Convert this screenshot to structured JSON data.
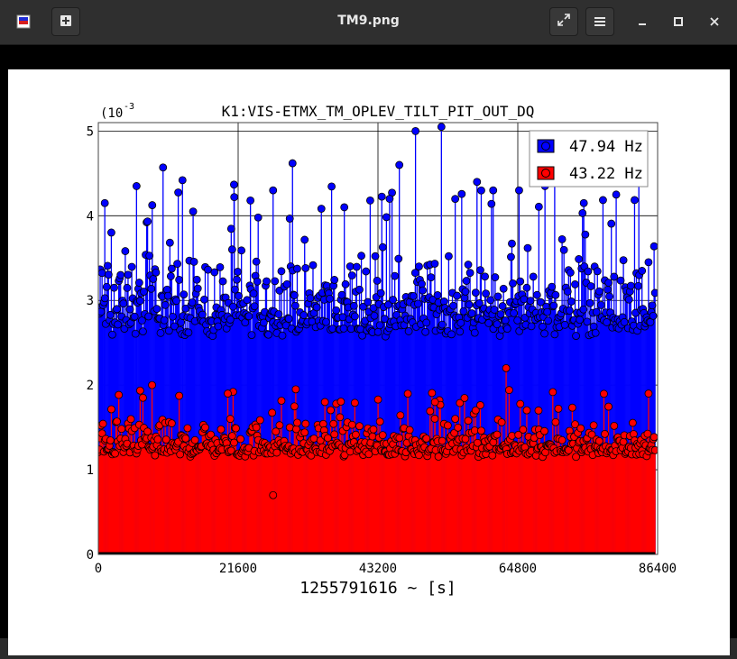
{
  "window": {
    "title": "TM9.png"
  },
  "icons": {
    "app": "app-image-viewer-icon",
    "new": "new-tab-icon",
    "fullscreen": "fullscreen-icon",
    "menu": "hamburger-menu-icon",
    "minimize": "minimize-icon",
    "maximize": "maximize-icon",
    "close": "close-icon"
  },
  "chart_data": {
    "type": "scatter",
    "title": "K1:VIS-ETMX_TM_OPLEV_TILT_PIT_OUT_DQ",
    "xlabel": "1255791616 ~ [s]",
    "ylabel": "",
    "y_exponent_label": "(10",
    "y_exponent_power": "-3",
    "xlim": [
      0,
      86400
    ],
    "ylim": [
      0,
      5.1
    ],
    "xticks": [
      "0",
      "21600",
      "43200",
      "64800",
      "86400"
    ],
    "yticks": [
      "0",
      "1",
      "2",
      "3",
      "4",
      "5"
    ],
    "grid": true,
    "legend_position": "top-right",
    "series": [
      {
        "name": "47.94 Hz",
        "color": "#0000ff",
        "style": "stem",
        "typical_range": [
          2.0,
          3.6
        ],
        "peaks": [
          {
            "x": 1000,
            "y": 4.15
          },
          {
            "x": 5900,
            "y": 4.35
          },
          {
            "x": 10000,
            "y": 4.57
          },
          {
            "x": 13000,
            "y": 4.42
          },
          {
            "x": 21000,
            "y": 4.22
          },
          {
            "x": 23500,
            "y": 4.18
          },
          {
            "x": 27000,
            "y": 4.3
          },
          {
            "x": 30000,
            "y": 4.62
          },
          {
            "x": 38000,
            "y": 4.1
          },
          {
            "x": 42000,
            "y": 4.18
          },
          {
            "x": 45000,
            "y": 4.2
          },
          {
            "x": 46500,
            "y": 4.6
          },
          {
            "x": 49000,
            "y": 5.0
          },
          {
            "x": 53000,
            "y": 5.05
          },
          {
            "x": 58500,
            "y": 4.4
          },
          {
            "x": 61000,
            "y": 4.3
          },
          {
            "x": 65000,
            "y": 4.3
          },
          {
            "x": 69000,
            "y": 4.35
          },
          {
            "x": 70500,
            "y": 4.4
          },
          {
            "x": 75000,
            "y": 4.15
          },
          {
            "x": 80000,
            "y": 4.25
          },
          {
            "x": 83500,
            "y": 4.45
          }
        ]
      },
      {
        "name": "43.22 Hz",
        "color": "#ff0000",
        "style": "stem",
        "typical_range": [
          0.9,
          1.6
        ],
        "peaks": [
          {
            "x": 8300,
            "y": 2.0
          },
          {
            "x": 20000,
            "y": 1.9
          },
          {
            "x": 30500,
            "y": 1.95
          },
          {
            "x": 35000,
            "y": 1.8
          },
          {
            "x": 52000,
            "y": 1.8
          },
          {
            "x": 63000,
            "y": 2.2
          },
          {
            "x": 68000,
            "y": 1.7
          },
          {
            "x": 85000,
            "y": 1.9
          },
          {
            "x": 27000,
            "y": 0.7
          }
        ]
      }
    ]
  }
}
